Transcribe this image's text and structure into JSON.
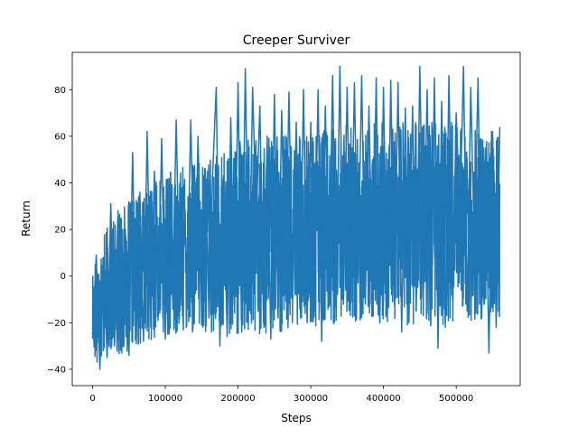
{
  "chart_data": {
    "type": "line",
    "title": "Creeper Surviver",
    "xlabel": "Steps",
    "ylabel": "Return",
    "xlim": [
      -28000,
      588000
    ],
    "ylim": [
      -47,
      96
    ],
    "xticks": [
      0,
      100000,
      200000,
      300000,
      400000,
      500000
    ],
    "yticks": [
      -40,
      -20,
      0,
      20,
      40,
      60,
      80
    ],
    "grid": false,
    "legend": "none",
    "colors": {
      "line": "#1f77b4",
      "axes": "#000000",
      "background": "#ffffff"
    },
    "series": [
      {
        "x": [
          0,
          5000,
          10000,
          15000,
          20000,
          25000,
          30000,
          35000,
          40000,
          45000,
          50000,
          55000,
          60000,
          65000,
          70000,
          75000,
          80000,
          85000,
          90000,
          95000,
          100000,
          105000,
          110000,
          115000,
          120000,
          125000,
          130000,
          135000,
          140000,
          145000,
          150000,
          155000,
          160000,
          165000,
          170000,
          175000,
          180000,
          185000,
          190000,
          195000,
          200000,
          205000,
          210000,
          215000,
          220000,
          225000,
          230000,
          235000,
          240000,
          245000,
          250000,
          255000,
          260000,
          265000,
          270000,
          275000,
          280000,
          285000,
          290000,
          295000,
          300000,
          305000,
          310000,
          315000,
          320000,
          325000,
          330000,
          335000,
          340000,
          345000,
          350000,
          355000,
          360000,
          365000,
          370000,
          375000,
          380000,
          385000,
          390000,
          395000,
          400000,
          405000,
          410000,
          415000,
          420000,
          425000,
          430000,
          435000,
          440000,
          445000,
          450000,
          455000,
          460000,
          465000,
          470000,
          475000,
          480000,
          485000,
          490000,
          495000,
          500000,
          505000,
          510000,
          515000,
          520000,
          525000,
          530000,
          535000,
          540000,
          545000,
          550000,
          555000,
          560000
        ],
        "y": [
          -25,
          9,
          -40,
          8,
          -35,
          31,
          -30,
          28,
          -33,
          20,
          -34,
          53,
          -29,
          36,
          -28,
          62,
          -22,
          45,
          -19,
          59,
          -27,
          42,
          -10,
          67,
          -15,
          39,
          -5,
          67,
          -12,
          60,
          -21,
          46,
          -18,
          43,
          81,
          -30,
          43,
          -26,
          68,
          -12,
          83,
          -24,
          89,
          -15,
          81,
          25,
          73,
          -20,
          60,
          -27,
          78,
          -18,
          71,
          -8,
          79,
          -10,
          66,
          -14,
          80,
          -20,
          66,
          -12,
          80,
          -28,
          73,
          -5,
          86,
          -16,
          90,
          -10,
          81,
          -7,
          83,
          -3,
          86,
          -12,
          73,
          -8,
          85,
          -20,
          81,
          -15,
          84,
          -12,
          83,
          -24,
          72,
          -20,
          73,
          -15,
          90,
          -6,
          80,
          -20,
          85,
          -31,
          75,
          -22,
          86,
          -10,
          70,
          23,
          90,
          -15,
          81,
          11,
          85,
          -18,
          55,
          -33,
          62,
          -22,
          64
        ],
        "dense_fill": {
          "seed": 17,
          "lower": [
            [
              0,
              -38
            ],
            [
              25000,
              -35
            ],
            [
              50000,
              -32
            ],
            [
              75000,
              -28
            ],
            [
              100000,
              -26
            ],
            [
              150000,
              -25
            ],
            [
              200000,
              -25
            ],
            [
              250000,
              -25
            ],
            [
              300000,
              -22
            ],
            [
              350000,
              -20
            ],
            [
              400000,
              -20
            ],
            [
              450000,
              -22
            ],
            [
              500000,
              -20
            ],
            [
              560000,
              -18
            ]
          ],
          "upper": [
            [
              0,
              8
            ],
            [
              25000,
              24
            ],
            [
              50000,
              32
            ],
            [
              75000,
              38
            ],
            [
              100000,
              44
            ],
            [
              150000,
              50
            ],
            [
              200000,
              58
            ],
            [
              250000,
              60
            ],
            [
              300000,
              62
            ],
            [
              350000,
              66
            ],
            [
              400000,
              66
            ],
            [
              450000,
              66
            ],
            [
              500000,
              66
            ],
            [
              560000,
              62
            ]
          ]
        }
      }
    ]
  }
}
